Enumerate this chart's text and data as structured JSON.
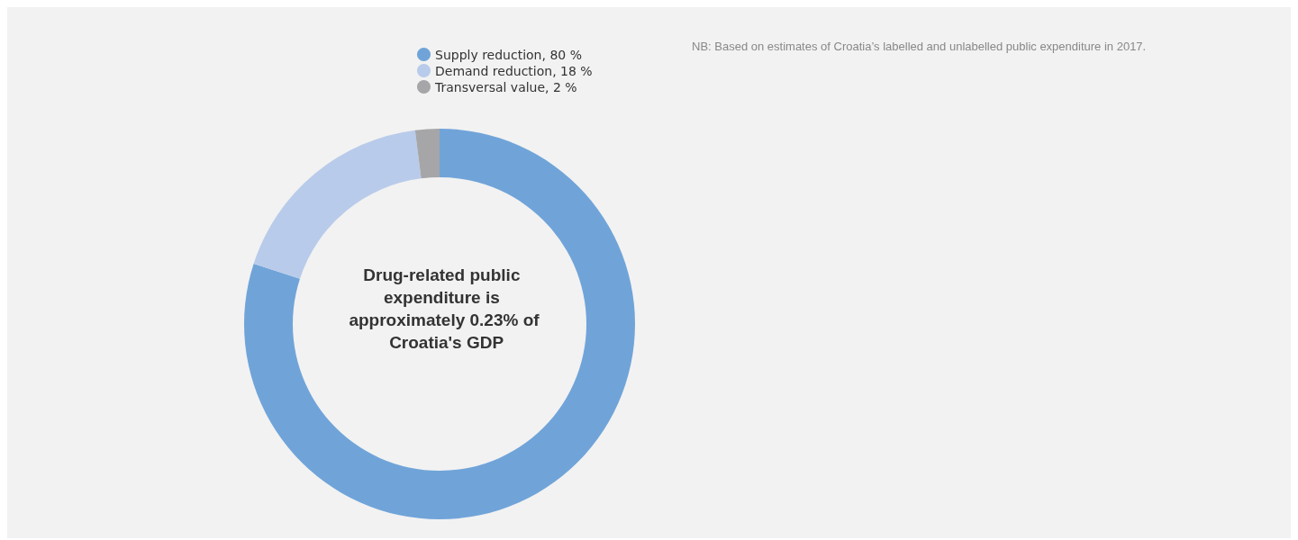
{
  "chart_data": {
    "type": "donut",
    "categories": [
      "Supply reduction, 80 %",
      "Demand reduction, 18 %",
      "Transversal value, 2 %"
    ],
    "values": [
      80,
      18,
      2
    ],
    "colors": [
      "#70a4d9",
      "#b9cbea",
      "#a6a6a8"
    ],
    "legend": "top",
    "annotations": [
      "NB: Based on estimates of Croatia’s labelled and unlabelled public expenditure in 2017.",
      "Drug-related public expenditure is approximately 0.23% of Croatia's GDP"
    ]
  }
}
